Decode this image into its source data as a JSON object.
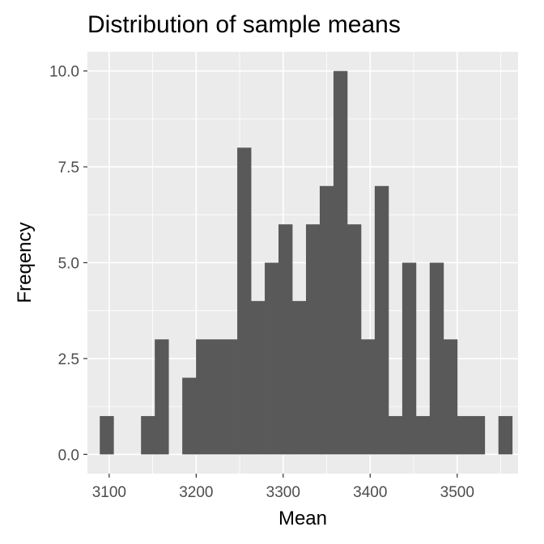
{
  "chart_data": {
    "type": "bar",
    "title": "Distribution of sample means",
    "xlabel": "Mean",
    "ylabel": "Freqency",
    "xlim": [
      3075,
      3570
    ],
    "ylim": [
      -0.5,
      10.5
    ],
    "x_ticks": [
      3100,
      3200,
      3300,
      3400,
      3500
    ],
    "x_tick_labels": [
      "3100",
      "3200",
      "3300",
      "3400",
      "3500"
    ],
    "y_ticks": [
      0,
      2.5,
      5,
      7.5,
      10
    ],
    "y_tick_labels": [
      "0.0",
      "2.5",
      "5.0",
      "7.5",
      "10.0"
    ],
    "grid": true,
    "bin_width": 15.8,
    "bins": [
      {
        "x": 3097.1,
        "count": 1
      },
      {
        "x": 3112.9,
        "count": 0
      },
      {
        "x": 3128.7,
        "count": 0
      },
      {
        "x": 3144.5,
        "count": 1
      },
      {
        "x": 3160.3,
        "count": 3
      },
      {
        "x": 3176.1,
        "count": 0
      },
      {
        "x": 3191.9,
        "count": 2
      },
      {
        "x": 3207.7,
        "count": 3
      },
      {
        "x": 3223.5,
        "count": 3
      },
      {
        "x": 3239.3,
        "count": 3
      },
      {
        "x": 3255.1,
        "count": 8
      },
      {
        "x": 3270.9,
        "count": 4
      },
      {
        "x": 3286.7,
        "count": 5
      },
      {
        "x": 3302.5,
        "count": 6
      },
      {
        "x": 3318.3,
        "count": 4
      },
      {
        "x": 3334.1,
        "count": 6
      },
      {
        "x": 3349.9,
        "count": 7
      },
      {
        "x": 3365.7,
        "count": 10
      },
      {
        "x": 3381.5,
        "count": 6
      },
      {
        "x": 3397.3,
        "count": 3
      },
      {
        "x": 3413.1,
        "count": 7
      },
      {
        "x": 3428.9,
        "count": 1
      },
      {
        "x": 3444.7,
        "count": 5
      },
      {
        "x": 3460.5,
        "count": 1
      },
      {
        "x": 3476.3,
        "count": 5
      },
      {
        "x": 3492.1,
        "count": 3
      },
      {
        "x": 3507.9,
        "count": 1
      },
      {
        "x": 3523.7,
        "count": 1
      },
      {
        "x": 3539.5,
        "count": 0
      },
      {
        "x": 3555.3,
        "count": 1
      }
    ],
    "colors": {
      "bar": "#595959",
      "panel": "#ebebeb",
      "grid": "#ffffff"
    }
  }
}
